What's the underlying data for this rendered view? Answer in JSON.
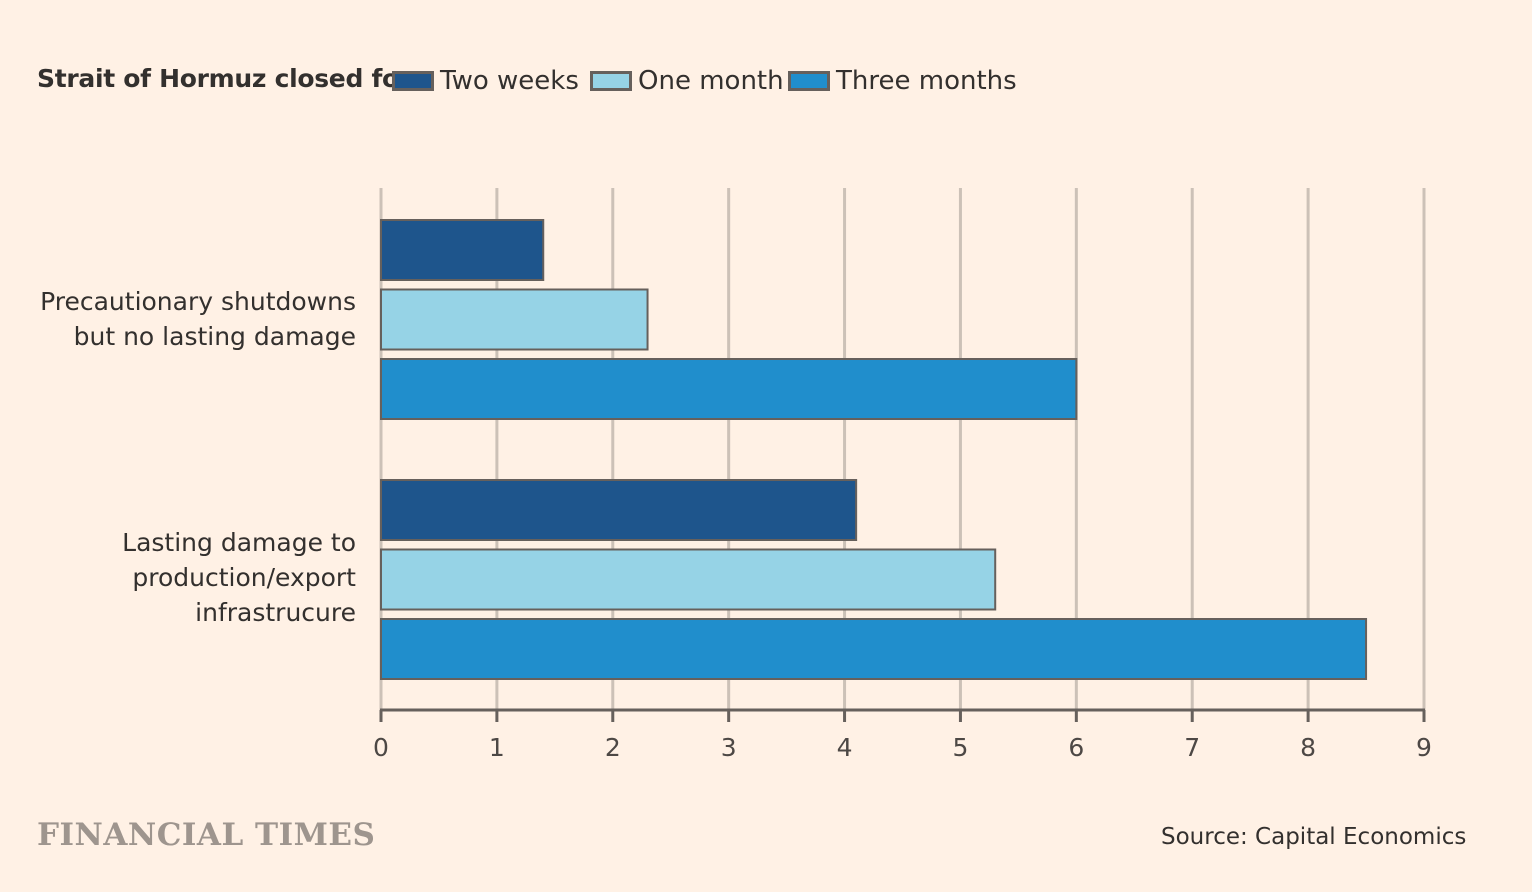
{
  "chart_data": {
    "type": "bar",
    "orientation": "horizontal",
    "legend_title": "Strait of Hormuz closed for",
    "categories": [
      "Precautionary shutdowns but no lasting damage",
      "Lasting damage to production/export infrastrucure"
    ],
    "category_lines": [
      [
        "Precautionary shutdowns",
        "but no lasting damage"
      ],
      [
        "Lasting damage to",
        "production/export",
        "infrastrucure"
      ]
    ],
    "series": [
      {
        "name": "Two weeks",
        "color": "#1e558c",
        "values": [
          1.4,
          4.1
        ]
      },
      {
        "name": "One month",
        "color": "#96d3e6",
        "values": [
          2.3,
          5.3
        ]
      },
      {
        "name": "Three months",
        "color": "#208ecc",
        "values": [
          6.0,
          8.5
        ]
      }
    ],
    "xlim": [
      0,
      9
    ],
    "xticks": [
      "0",
      "1",
      "2",
      "3",
      "4",
      "5",
      "6",
      "7",
      "8",
      "9"
    ],
    "grid": true,
    "legend_position": "top-left",
    "xlabel": "",
    "ylabel": ""
  },
  "branding": "FINANCIAL TIMES",
  "source": "Source: Capital Economics"
}
